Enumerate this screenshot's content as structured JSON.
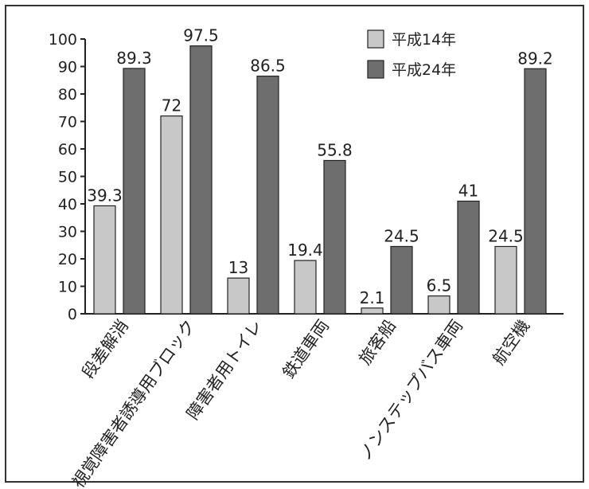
{
  "chart_data": {
    "type": "bar",
    "categories": [
      "段差解消",
      "視覚障害者誘導用ブロック",
      "障害者用トイレ",
      "鉄道車両",
      "旅客船",
      "ノンステップバス車両",
      "航空機"
    ],
    "series": [
      {
        "name": "平成14年",
        "values": [
          39.3,
          72,
          13,
          19.4,
          2.1,
          6.5,
          24.5
        ],
        "color": "#c8c8c8"
      },
      {
        "name": "平成24年",
        "values": [
          89.3,
          97.5,
          86.5,
          55.8,
          24.5,
          41,
          89.2
        ],
        "color": "#6e6e6e"
      }
    ],
    "value_labels": [
      [
        "39.3",
        "72",
        "13",
        "19.4",
        "2.1",
        "6.5",
        "24.5"
      ],
      [
        "89.3",
        "97.5",
        "86.5",
        "55.8",
        "24.5",
        "41",
        "89.2"
      ]
    ],
    "y_ticks": [
      "0",
      "10",
      "20",
      "30",
      "40",
      "50",
      "60",
      "70",
      "80",
      "90",
      "100"
    ],
    "ylim": [
      0,
      100
    ],
    "title": "",
    "xlabel": "",
    "ylabel": "",
    "grid": false,
    "legend_position": "top-right"
  }
}
